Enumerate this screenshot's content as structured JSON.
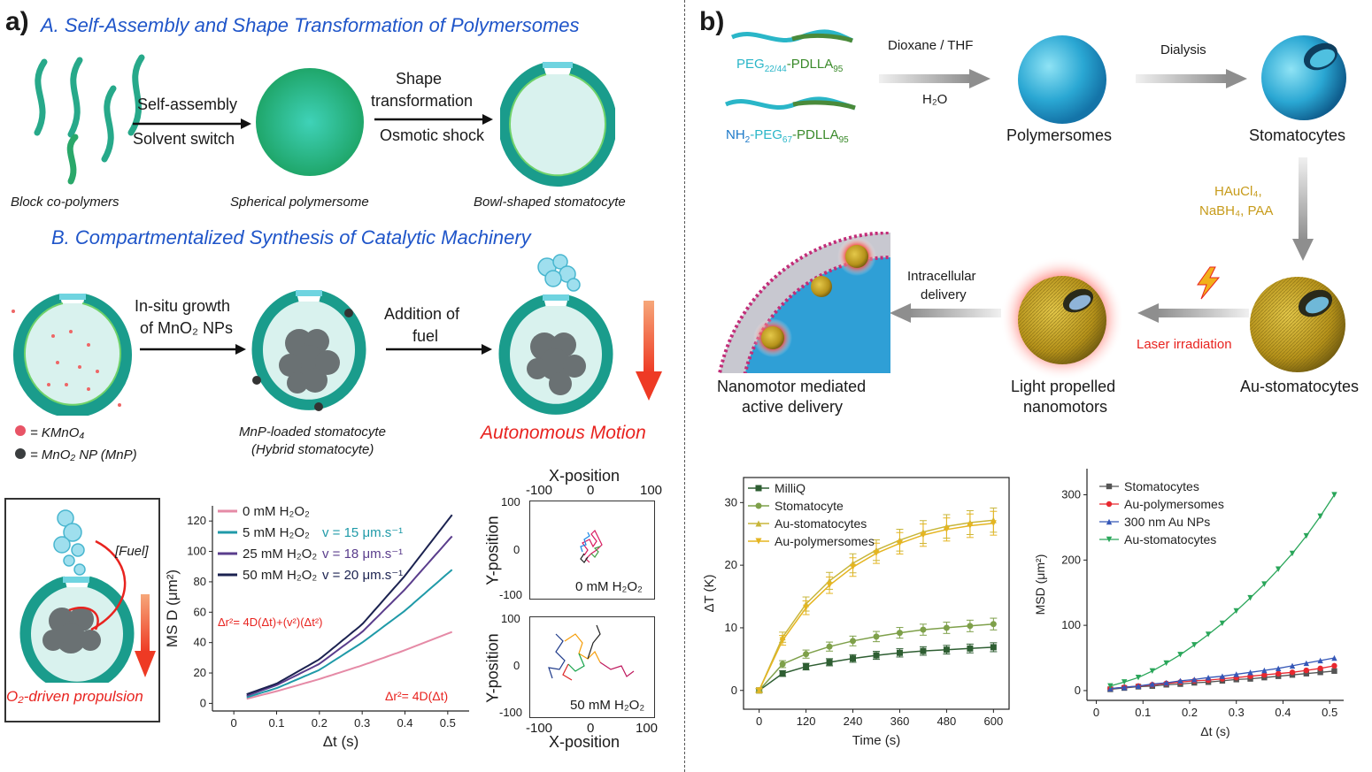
{
  "panel_a": {
    "label": "a)",
    "section_a_title": "A. Self-Assembly and Shape Transformation of Polymersomes",
    "step1_line1": "Self-assembly",
    "step1_line2": "Solvent switch",
    "step2_line1": "Shape",
    "step2_line2": "transformation",
    "step2_line3": "Osmotic shock",
    "cap_copolymers": "Block co-polymers",
    "cap_spherical": "Spherical polymersome",
    "cap_bowl": "Bowl-shaped stomatocyte",
    "section_b_title": "B. Compartmentalized Synthesis of Catalytic Machinery",
    "growth_line1": "In-situ growth",
    "growth_line2": "of MnO₂ NPs",
    "fuel_line1": "Addition of",
    "fuel_line2": "fuel",
    "legend_kmno4": "= KMnO₄",
    "legend_mnp": "= MnO₂ NP (MnP)",
    "cap_mnp_line1": "MnP-loaded stomatocyte",
    "cap_mnp_line2": "(Hybrid stomatocyte)",
    "autonomous": "Autonomous Motion",
    "fuel_label": "[Fuel]",
    "propulsion": "O₂-driven propulsion",
    "track_top_label": "0 mM H₂O₂",
    "track_bottom_label": "50 mM H₂O₂",
    "track_x_title": "X-position",
    "track_y_title": "Y-position",
    "track_ticks_x": [
      "-100",
      "0",
      "100"
    ],
    "track_ticks_y": [
      "100",
      "0",
      "-100"
    ]
  },
  "panel_b": {
    "label": "b)",
    "poly1_prefix": "PEG",
    "poly1_sub": "22/44",
    "poly1_suffix": "-PDLLA",
    "poly1_sub2": "95",
    "poly2_prefix": "NH",
    "poly2_sub": "2",
    "poly2_mid": "-PEG",
    "poly2_sub2": "67",
    "poly2_suffix": "-PDLLA",
    "poly2_sub3": "95",
    "solvent_top": "Dioxane / THF",
    "solvent_bottom": "H₂O",
    "dialysis": "Dialysis",
    "polymersomes": "Polymersomes",
    "stomatocytes": "Stomatocytes",
    "reagents_line1": "HAuCl₄,",
    "reagents_line2": "NaBH₄, PAA",
    "au_stomatocytes": "Au-stomatocytes",
    "laser": "Laser irradiation",
    "light_line1": "Light propelled",
    "light_line2": "nanomotors",
    "intracellular_line1": "Intracellular",
    "intracellular_line2": "delivery",
    "nanomotor_line1": "Nanomotor mediated",
    "nanomotor_line2": "active delivery"
  },
  "chart_data": [
    {
      "type": "line",
      "xlabel": "Δt (s)",
      "ylabel": "MS D (μm²)",
      "xlim": [
        -0.05,
        0.55
      ],
      "ylim": [
        -5,
        130
      ],
      "x_ticks": [
        "0",
        "0.1",
        "0.2",
        "0.3",
        "0.4",
        "0.5"
      ],
      "y_ticks": [
        "0",
        "20",
        "40",
        "60",
        "80",
        "100",
        "120"
      ],
      "legend_placement": "top-left",
      "series": [
        {
          "name": "0 mM H₂O₂",
          "color": "#e58aa6",
          "x": [
            0.03,
            0.1,
            0.2,
            0.3,
            0.4,
            0.51
          ],
          "y": [
            3,
            8,
            16,
            25,
            35,
            47
          ]
        },
        {
          "name": "5 mM H₂O₂",
          "velocity": "v = 15 μm.s⁻¹",
          "color": "#1f9aa8",
          "x": [
            0.03,
            0.1,
            0.2,
            0.3,
            0.4,
            0.51
          ],
          "y": [
            4,
            10,
            22,
            40,
            61,
            88
          ]
        },
        {
          "name": "25 mM H₂O₂",
          "velocity": "v = 18 μm.s⁻¹",
          "color": "#5a3d8c",
          "x": [
            0.03,
            0.1,
            0.2,
            0.3,
            0.4,
            0.51
          ],
          "y": [
            5,
            12,
            26,
            47,
            75,
            110
          ]
        },
        {
          "name": "50 mM H₂O₂",
          "velocity": "v = 20 μm.s⁻¹",
          "color": "#1b2250",
          "x": [
            0.03,
            0.1,
            0.2,
            0.3,
            0.4,
            0.51
          ],
          "y": [
            6,
            13,
            29,
            52,
            84,
            124
          ]
        }
      ],
      "annotations": [
        "Δr²= 4D(Δt)+(v²)(Δt²)",
        "Δr²= 4D(Δt)"
      ]
    },
    {
      "type": "line",
      "xlabel": "Time (s)",
      "ylabel": "ΔT (K)",
      "xlim": [
        -40,
        640
      ],
      "ylim": [
        -3,
        34
      ],
      "x_ticks": [
        "0",
        "120",
        "240",
        "360",
        "480",
        "600"
      ],
      "y_ticks": [
        "0",
        "10",
        "20",
        "30"
      ],
      "legend_placement": "top-left",
      "series": [
        {
          "name": "MilliQ",
          "color": "#2e5e32",
          "marker": "square",
          "x": [
            0,
            60,
            120,
            180,
            240,
            300,
            360,
            420,
            480,
            540,
            600
          ],
          "y": [
            0,
            2.7,
            3.8,
            4.5,
            5.1,
            5.6,
            6.0,
            6.3,
            6.5,
            6.7,
            6.9
          ]
        },
        {
          "name": "Stomatocyte",
          "color": "#7ea04a",
          "marker": "circle",
          "x": [
            0,
            60,
            120,
            180,
            240,
            300,
            360,
            420,
            480,
            540,
            600
          ],
          "y": [
            0,
            4.2,
            5.8,
            7.0,
            7.9,
            8.6,
            9.2,
            9.7,
            10.0,
            10.3,
            10.6
          ]
        },
        {
          "name": "Au-stomatocytes",
          "color": "#c8b63a",
          "marker": "triangle-up",
          "x": [
            0,
            60,
            120,
            180,
            240,
            300,
            360,
            420,
            480,
            540,
            600
          ],
          "y": [
            0,
            8.5,
            13.8,
            17.5,
            20.3,
            22.4,
            24.0,
            25.3,
            26.2,
            26.8,
            27.2
          ]
        },
        {
          "name": "Au-polymersomes",
          "color": "#e5b521",
          "marker": "triangle-down",
          "x": [
            0,
            60,
            120,
            180,
            240,
            300,
            360,
            420,
            480,
            540,
            600
          ],
          "y": [
            0,
            8.0,
            13.2,
            16.8,
            19.7,
            21.9,
            23.5,
            24.8,
            25.7,
            26.3,
            26.7
          ]
        }
      ]
    },
    {
      "type": "line",
      "xlabel": "Δt (s)",
      "ylabel": "MSD (μm²)",
      "xlim": [
        -0.02,
        0.53
      ],
      "ylim": [
        -15,
        340
      ],
      "x_ticks": [
        "0",
        "0.1",
        "0.2",
        "0.3",
        "0.4",
        "0.5"
      ],
      "y_ticks": [
        "0",
        "100",
        "200",
        "300"
      ],
      "legend_placement": "top-left",
      "series": [
        {
          "name": "Stomatocytes",
          "color": "#555555",
          "marker": "square",
          "x": [
            0.03,
            0.06,
            0.09,
            0.12,
            0.15,
            0.18,
            0.21,
            0.24,
            0.27,
            0.3,
            0.33,
            0.36,
            0.39,
            0.42,
            0.45,
            0.48,
            0.51
          ],
          "y": [
            2,
            4,
            6,
            7,
            9,
            10,
            12,
            13,
            15,
            17,
            18,
            20,
            22,
            24,
            26,
            28,
            30
          ]
        },
        {
          "name": "Au-polymersomes",
          "color": "#e8282f",
          "marker": "circle",
          "x": [
            0.03,
            0.06,
            0.09,
            0.12,
            0.15,
            0.18,
            0.21,
            0.24,
            0.27,
            0.3,
            0.33,
            0.36,
            0.39,
            0.42,
            0.45,
            0.48,
            0.51
          ],
          "y": [
            3,
            5,
            7,
            9,
            11,
            13,
            15,
            16,
            18,
            20,
            22,
            24,
            26,
            28,
            31,
            34,
            38
          ]
        },
        {
          "name": "300 nm Au NPs",
          "color": "#3557b7",
          "marker": "triangle-up",
          "x": [
            0.03,
            0.06,
            0.09,
            0.12,
            0.15,
            0.18,
            0.21,
            0.24,
            0.27,
            0.3,
            0.33,
            0.36,
            0.39,
            0.42,
            0.45,
            0.48,
            0.51
          ],
          "y": [
            3,
            5,
            7,
            10,
            12,
            15,
            17,
            20,
            22,
            25,
            28,
            31,
            34,
            38,
            42,
            46,
            50
          ]
        },
        {
          "name": "Au-stomatocytes",
          "color": "#2aa65a",
          "marker": "triangle-down",
          "x": [
            0.03,
            0.06,
            0.09,
            0.12,
            0.15,
            0.18,
            0.21,
            0.24,
            0.27,
            0.3,
            0.33,
            0.36,
            0.39,
            0.42,
            0.45,
            0.48,
            0.51
          ],
          "y": [
            7,
            13,
            20,
            30,
            42,
            55,
            70,
            86,
            103,
            122,
            142,
            163,
            186,
            210,
            237,
            267,
            300
          ]
        }
      ]
    }
  ]
}
